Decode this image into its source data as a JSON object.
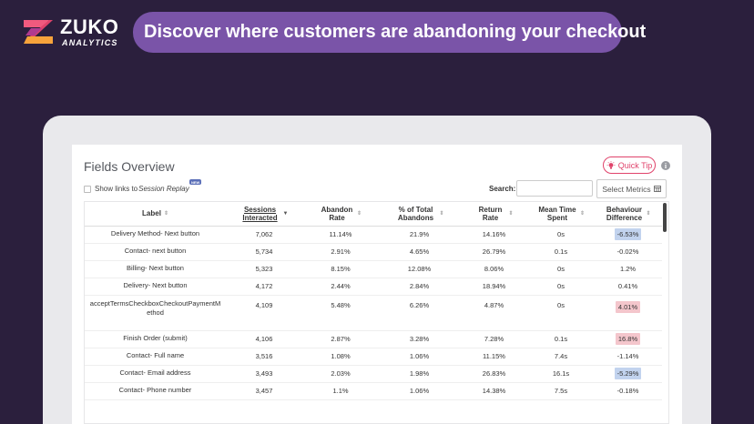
{
  "brand": {
    "name": "ZUKO",
    "sub": "ANALYTICS"
  },
  "headline": "Discover where customers are abandoning your checkout",
  "panel": {
    "title": "Fields Overview",
    "quick_tip_label": "Quick Tip",
    "info_icon": "i",
    "replay_prefix": "Show links to ",
    "replay_em": "Session Replay",
    "new_badge": "NEW",
    "search_label": "Search:",
    "search_value": "",
    "select_metrics_label": "Select Metrics"
  },
  "table": {
    "columns": [
      {
        "label": "Label"
      },
      {
        "label": "Sessions Interacted"
      },
      {
        "label": "Abandon Rate"
      },
      {
        "label": "% of Total Abandons"
      },
      {
        "label": "Return Rate"
      },
      {
        "label": "Mean Time Spent"
      },
      {
        "label": "Behaviour Difference"
      }
    ],
    "rows": [
      {
        "label": "Delivery Method- Next button",
        "sessions": "7,062",
        "abandon_rate": "11.14%",
        "pct_total": "21.9%",
        "return_rate": "14.16%",
        "mean_time": "0s",
        "diff": "-6.53%",
        "highlight": "blue"
      },
      {
        "label": "Contact- next button",
        "sessions": "5,734",
        "abandon_rate": "2.91%",
        "pct_total": "4.65%",
        "return_rate": "26.79%",
        "mean_time": "0.1s",
        "diff": "-0.02%",
        "highlight": ""
      },
      {
        "label": "Billing- Next button",
        "sessions": "5,323",
        "abandon_rate": "8.15%",
        "pct_total": "12.08%",
        "return_rate": "8.06%",
        "mean_time": "0s",
        "diff": "1.2%",
        "highlight": ""
      },
      {
        "label": "Delivery- Next button",
        "sessions": "4,172",
        "abandon_rate": "2.44%",
        "pct_total": "2.84%",
        "return_rate": "18.94%",
        "mean_time": "0s",
        "diff": "0.41%",
        "highlight": ""
      },
      {
        "label": "acceptTermsCheckboxCheckoutPaymentMethod",
        "sessions": "4,109",
        "abandon_rate": "5.48%",
        "pct_total": "6.26%",
        "return_rate": "4.87%",
        "mean_time": "0s",
        "diff": "4.01%",
        "highlight": "pink"
      },
      {
        "label": "Finish Order (submit)",
        "sessions": "4,106",
        "abandon_rate": "2.87%",
        "pct_total": "3.28%",
        "return_rate": "7.28%",
        "mean_time": "0.1s",
        "diff": "16.8%",
        "highlight": "pink"
      },
      {
        "label": "Contact- Full name",
        "sessions": "3,516",
        "abandon_rate": "1.08%",
        "pct_total": "1.06%",
        "return_rate": "11.15%",
        "mean_time": "7.4s",
        "diff": "-1.14%",
        "highlight": ""
      },
      {
        "label": "Contact- Email address",
        "sessions": "3,493",
        "abandon_rate": "2.03%",
        "pct_total": "1.98%",
        "return_rate": "26.83%",
        "mean_time": "16.1s",
        "diff": "-5.29%",
        "highlight": "blue"
      },
      {
        "label": "Contact- Phone number",
        "sessions": "3,457",
        "abandon_rate": "1.1%",
        "pct_total": "1.06%",
        "return_rate": "14.38%",
        "mean_time": "7.5s",
        "diff": "-0.18%",
        "highlight": ""
      }
    ]
  },
  "colors": {
    "background": "#2b1f3d",
    "headline_pill": "#7a54a8",
    "accent_pink": "#e0436b",
    "highlight_blue": "#c2d3ee",
    "highlight_pink": "#f4c6cc"
  }
}
